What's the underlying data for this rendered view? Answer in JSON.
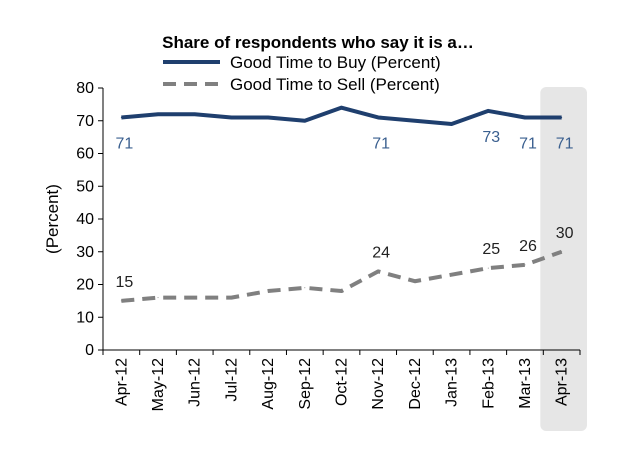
{
  "chart_data": {
    "type": "line",
    "title": "Share of respondents who say it is a…",
    "ylabel": "(Percent)",
    "xlabel": "",
    "ylim": [
      0,
      80
    ],
    "yticks": [
      0,
      10,
      20,
      30,
      40,
      50,
      60,
      70,
      80
    ],
    "categories": [
      "Apr-12",
      "May-12",
      "Jun-12",
      "Jul-12",
      "Aug-12",
      "Sep-12",
      "Oct-12",
      "Nov-12",
      "Dec-12",
      "Jan-13",
      "Feb-13",
      "Mar-13",
      "Apr-13"
    ],
    "highlight_category": "Apr-13",
    "legend_position": "top",
    "grid": false,
    "series": [
      {
        "name": "Good Time to Buy (Percent)",
        "color": "#1f3f6e",
        "dash": "solid",
        "values": [
          71,
          72,
          72,
          71,
          71,
          70,
          74,
          71,
          70,
          69,
          73,
          71,
          71
        ],
        "labels": [
          {
            "index": 0,
            "text": "71"
          },
          {
            "index": 7,
            "text": "71"
          },
          {
            "index": 10,
            "text": "73"
          },
          {
            "index": 11,
            "text": "71"
          },
          {
            "index": 12,
            "text": "71"
          }
        ]
      },
      {
        "name": "Good Time to Sell (Percent)",
        "color": "#808080",
        "dash": "dashed",
        "values": [
          15,
          16,
          16,
          16,
          18,
          19,
          18,
          24,
          21,
          23,
          25,
          26,
          30
        ],
        "labels": [
          {
            "index": 0,
            "text": "15"
          },
          {
            "index": 7,
            "text": "24"
          },
          {
            "index": 10,
            "text": "25"
          },
          {
            "index": 11,
            "text": "26"
          },
          {
            "index": 12,
            "text": "30"
          }
        ]
      }
    ]
  }
}
